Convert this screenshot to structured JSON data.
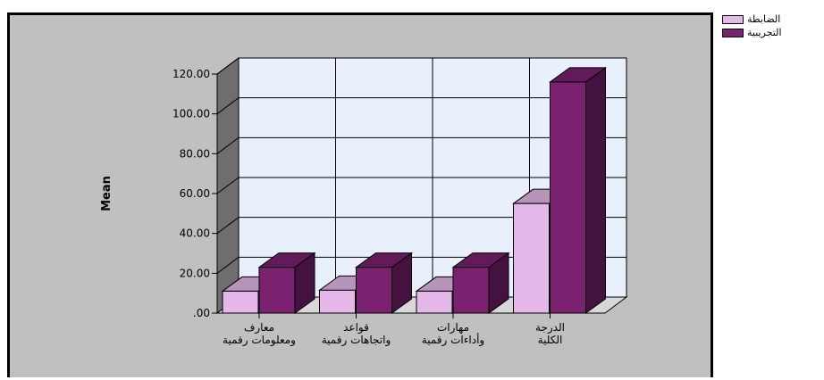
{
  "chart_data": {
    "type": "bar",
    "style": "3d-clustered",
    "ylabel": "Mean",
    "ylim": [
      0,
      120
    ],
    "yticks": [
      ".00",
      "20.00",
      "40.00",
      "60.00",
      "80.00",
      "100.00",
      "120.00"
    ],
    "grid": true,
    "legend_position": "top-right",
    "categories": [
      [
        "معارف",
        "ومعلومات رقمية"
      ],
      [
        "قواعد",
        "واتجاهات رقمية"
      ],
      [
        "مهارات",
        "وأداءات رقمية"
      ],
      [
        "الدرجة",
        "الكلية"
      ]
    ],
    "series": [
      {
        "name": "الضابطة",
        "color": "#e4b9ea",
        "values": [
          11,
          11.5,
          11,
          55
        ]
      },
      {
        "name": "التجريبية",
        "color": "#7a2170",
        "values": [
          23,
          23,
          23,
          116
        ]
      }
    ],
    "colors": {
      "background": "#c0c0c0",
      "plot_floor": "#e8f1fb",
      "wall_side": "#6e6e6e"
    }
  }
}
